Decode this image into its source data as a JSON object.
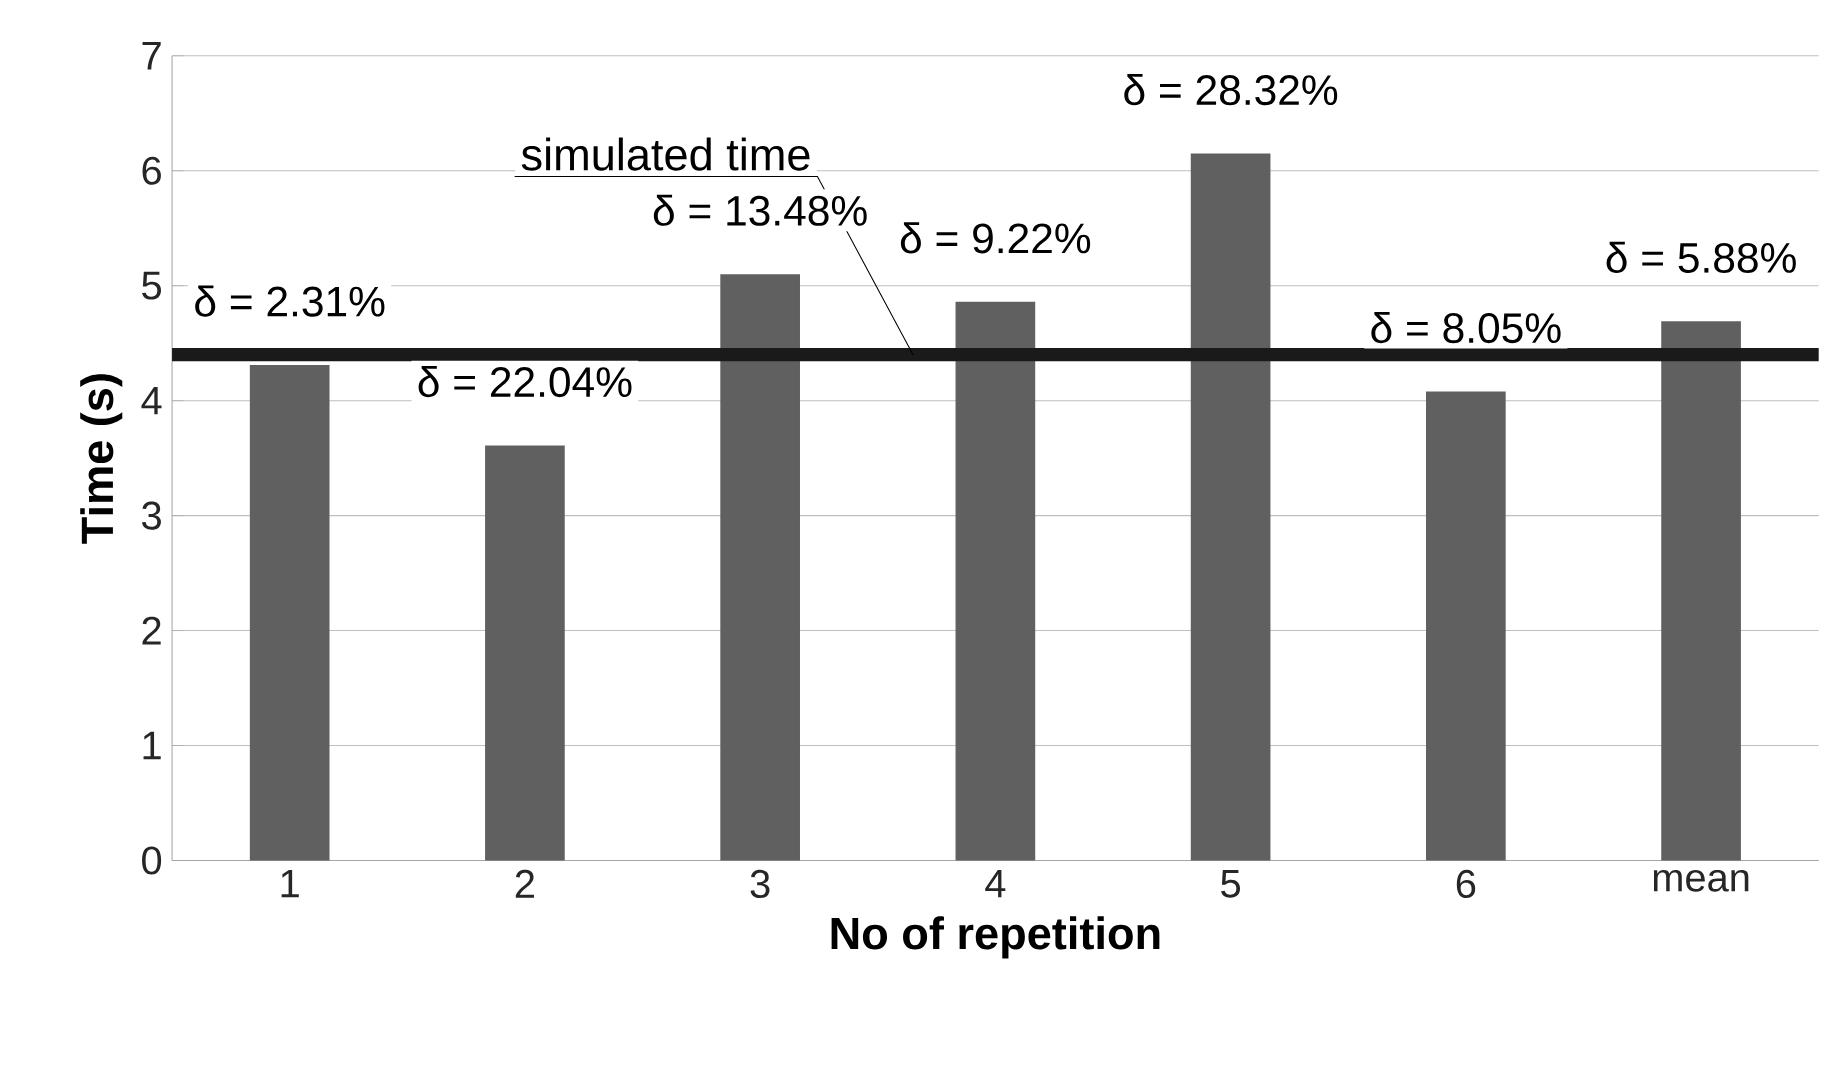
{
  "chart_data": {
    "type": "bar",
    "xlabel": "No of repetition",
    "ylabel": "Time (s)",
    "categories": [
      "1",
      "2",
      "3",
      "4",
      "5",
      "6",
      "mean"
    ],
    "values": [
      4.31,
      3.61,
      5.1,
      4.86,
      6.15,
      4.08,
      4.69
    ],
    "color": "#606060",
    "ylim": [
      0,
      7
    ],
    "yticks": [
      0,
      1,
      2,
      3,
      4,
      5,
      6,
      7
    ],
    "grid": "y",
    "ref_lines": [
      {
        "axis": "y",
        "value": 4.4,
        "label": "simulated time",
        "color": "#1a1a1a"
      }
    ],
    "annotations": [
      {
        "text": "δ = 2.31%",
        "x": "1",
        "y": 4.31
      },
      {
        "text": "δ = 22.04%",
        "x": "2",
        "y": 3.61
      },
      {
        "text": "δ = 13.48%",
        "x": "3",
        "y": 5.1
      },
      {
        "text": "δ = 9.22%",
        "x": "4",
        "y": 4.86
      },
      {
        "text": "δ = 28.32%",
        "x": "5",
        "y": 6.15
      },
      {
        "text": "δ = 8.05%",
        "x": "6",
        "y": 4.08
      },
      {
        "text": "δ = 5.88%",
        "x": "mean",
        "y": 4.69
      }
    ]
  }
}
